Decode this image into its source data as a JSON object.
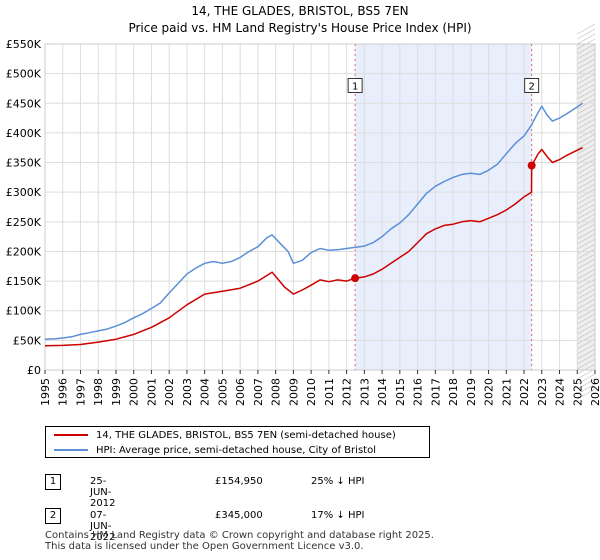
{
  "chart_data": {
    "type": "line",
    "title": "14, THE GLADES, BRISTOL, BS5 7EN",
    "subtitle": "Price paid vs. HM Land Registry's House Price Index (HPI)",
    "xlim": [
      1995,
      2026
    ],
    "ylim": [
      0,
      550000
    ],
    "xticks": [
      "1995",
      "1996",
      "1997",
      "1998",
      "1999",
      "2000",
      "2001",
      "2002",
      "2003",
      "2004",
      "2005",
      "2006",
      "2007",
      "2008",
      "2009",
      "2010",
      "2011",
      "2012",
      "2013",
      "2014",
      "2015",
      "2016",
      "2017",
      "2018",
      "2019",
      "2020",
      "2021",
      "2022",
      "2023",
      "2024",
      "2025",
      "2026"
    ],
    "yticks": [
      {
        "value": 0,
        "label": "£0"
      },
      {
        "value": 50000,
        "label": "£50K"
      },
      {
        "value": 100000,
        "label": "£100K"
      },
      {
        "value": 150000,
        "label": "£150K"
      },
      {
        "value": 200000,
        "label": "£200K"
      },
      {
        "value": 250000,
        "label": "£250K"
      },
      {
        "value": 300000,
        "label": "£300K"
      },
      {
        "value": 350000,
        "label": "£350K"
      },
      {
        "value": 400000,
        "label": "£400K"
      },
      {
        "value": 450000,
        "label": "£450K"
      },
      {
        "value": 500000,
        "label": "£500K"
      },
      {
        "value": 550000,
        "label": "£550K"
      }
    ],
    "shaded_period": [
      2012.48,
      2022.43
    ],
    "forecast_from": 2025.0,
    "series": [
      {
        "name": "14, THE GLADES, BRISTOL, BS5 7EN (semi-detached house)",
        "color": "#cc0000",
        "points": [
          [
            1995.0,
            41000
          ],
          [
            1996.0,
            41500
          ],
          [
            1997.0,
            43000
          ],
          [
            1998.0,
            47000
          ],
          [
            1999.0,
            52000
          ],
          [
            2000.0,
            60000
          ],
          [
            2001.0,
            72000
          ],
          [
            2002.0,
            88000
          ],
          [
            2003.0,
            110000
          ],
          [
            2004.0,
            128000
          ],
          [
            2005.0,
            133000
          ],
          [
            2006.0,
            138000
          ],
          [
            2007.0,
            150000
          ],
          [
            2007.8,
            165000
          ],
          [
            2008.5,
            140000
          ],
          [
            2009.0,
            128000
          ],
          [
            2009.5,
            135000
          ],
          [
            2010.0,
            143000
          ],
          [
            2010.5,
            152000
          ],
          [
            2011.0,
            149000
          ],
          [
            2011.5,
            152000
          ],
          [
            2012.0,
            150000
          ],
          [
            2012.48,
            154950
          ],
          [
            2013.0,
            157000
          ],
          [
            2013.5,
            162000
          ],
          [
            2014.0,
            170000
          ],
          [
            2014.5,
            180000
          ],
          [
            2015.0,
            190000
          ],
          [
            2015.5,
            200000
          ],
          [
            2016.0,
            215000
          ],
          [
            2016.5,
            230000
          ],
          [
            2017.0,
            238000
          ],
          [
            2017.5,
            244000
          ],
          [
            2018.0,
            246000
          ],
          [
            2018.5,
            250000
          ],
          [
            2019.0,
            252000
          ],
          [
            2019.5,
            250000
          ],
          [
            2020.0,
            256000
          ],
          [
            2020.5,
            262000
          ],
          [
            2021.0,
            270000
          ],
          [
            2021.5,
            280000
          ],
          [
            2022.0,
            292000
          ],
          [
            2022.42,
            300000
          ],
          [
            2022.43,
            345000
          ],
          [
            2022.8,
            365000
          ],
          [
            2023.0,
            372000
          ],
          [
            2023.3,
            360000
          ],
          [
            2023.6,
            350000
          ],
          [
            2024.0,
            355000
          ],
          [
            2024.4,
            362000
          ],
          [
            2024.8,
            368000
          ],
          [
            2025.3,
            375000
          ]
        ]
      },
      {
        "name": "HPI: Average price, semi-detached house, City of Bristol",
        "color": "#5b8fd6",
        "points": [
          [
            1995.0,
            52000
          ],
          [
            1995.5,
            52500
          ],
          [
            1996.0,
            54000
          ],
          [
            1996.5,
            56000
          ],
          [
            1997.0,
            60000
          ],
          [
            1997.5,
            63000
          ],
          [
            1998.0,
            66000
          ],
          [
            1998.5,
            69000
          ],
          [
            1999.0,
            74000
          ],
          [
            1999.5,
            80000
          ],
          [
            2000.0,
            88000
          ],
          [
            2000.5,
            95000
          ],
          [
            2001.0,
            104000
          ],
          [
            2001.5,
            113000
          ],
          [
            2002.0,
            130000
          ],
          [
            2002.5,
            146000
          ],
          [
            2003.0,
            162000
          ],
          [
            2003.5,
            172000
          ],
          [
            2004.0,
            180000
          ],
          [
            2004.5,
            183000
          ],
          [
            2005.0,
            180000
          ],
          [
            2005.5,
            183000
          ],
          [
            2006.0,
            190000
          ],
          [
            2006.5,
            200000
          ],
          [
            2007.0,
            208000
          ],
          [
            2007.5,
            223000
          ],
          [
            2007.8,
            228000
          ],
          [
            2008.3,
            212000
          ],
          [
            2008.7,
            200000
          ],
          [
            2009.0,
            180000
          ],
          [
            2009.5,
            185000
          ],
          [
            2010.0,
            198000
          ],
          [
            2010.5,
            205000
          ],
          [
            2011.0,
            202000
          ],
          [
            2011.5,
            203000
          ],
          [
            2012.0,
            205000
          ],
          [
            2012.5,
            207000
          ],
          [
            2013.0,
            209000
          ],
          [
            2013.5,
            215000
          ],
          [
            2014.0,
            225000
          ],
          [
            2014.5,
            238000
          ],
          [
            2015.0,
            248000
          ],
          [
            2015.5,
            262000
          ],
          [
            2016.0,
            280000
          ],
          [
            2016.5,
            298000
          ],
          [
            2017.0,
            310000
          ],
          [
            2017.5,
            318000
          ],
          [
            2018.0,
            325000
          ],
          [
            2018.5,
            330000
          ],
          [
            2019.0,
            332000
          ],
          [
            2019.5,
            330000
          ],
          [
            2020.0,
            337000
          ],
          [
            2020.5,
            347000
          ],
          [
            2021.0,
            365000
          ],
          [
            2021.5,
            382000
          ],
          [
            2022.0,
            395000
          ],
          [
            2022.4,
            412000
          ],
          [
            2022.8,
            435000
          ],
          [
            2023.0,
            445000
          ],
          [
            2023.3,
            430000
          ],
          [
            2023.6,
            420000
          ],
          [
            2024.0,
            425000
          ],
          [
            2024.4,
            432000
          ],
          [
            2024.8,
            440000
          ],
          [
            2025.3,
            450000
          ]
        ]
      }
    ],
    "annotations": [
      {
        "label": "1",
        "x": 2012.48,
        "y": 154950,
        "label_y": 480000
      },
      {
        "label": "2",
        "x": 2022.43,
        "y": 345000,
        "label_y": 480000
      }
    ]
  },
  "legend": {
    "items": [
      {
        "label": "14, THE GLADES, BRISTOL, BS5 7EN (semi-detached house)",
        "color": "#cc0000"
      },
      {
        "label": "HPI: Average price, semi-detached house, City of Bristol",
        "color": "#5b8fd6"
      }
    ]
  },
  "sales": [
    {
      "num": "1",
      "date": "25-JUN-2012",
      "price": "£154,950",
      "hpi": "25% ↓ HPI"
    },
    {
      "num": "2",
      "date": "07-JUN-2022",
      "price": "£345,000",
      "hpi": "17% ↓ HPI"
    }
  ],
  "footer": {
    "line1": "Contains HM Land Registry data © Crown copyright and database right 2025.",
    "line2": "This data is licensed under the Open Government Licence v3.0."
  }
}
